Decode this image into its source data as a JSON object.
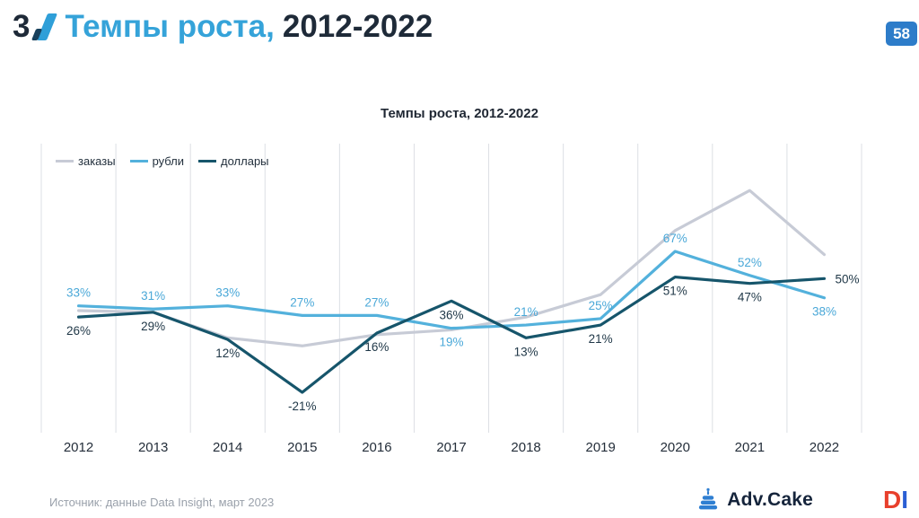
{
  "slide": {
    "number": "3",
    "title_highlight": "Темпы роста,",
    "title_rest": "2012-2022",
    "page_badge": "58"
  },
  "chart_data": {
    "type": "line",
    "title": "Темпы роста, 2012-2022",
    "categories": [
      "2012",
      "2013",
      "2014",
      "2015",
      "2016",
      "2017",
      "2018",
      "2019",
      "2020",
      "2021",
      "2022"
    ],
    "series": [
      {
        "id": "orders",
        "name": "заказы",
        "color": "#c7cbd6",
        "label_color": "#c7cbd6",
        "show_labels": false,
        "values": [
          30,
          29,
          13,
          8,
          15,
          18,
          26,
          40,
          80,
          105,
          65
        ],
        "label_positions": []
      },
      {
        "id": "rubles",
        "name": "рубли",
        "color": "#53b1dc",
        "label_color": "#4aa8d8",
        "show_labels": true,
        "values": [
          33,
          31,
          33,
          27,
          27,
          19,
          21,
          25,
          67,
          52,
          38
        ],
        "label_positions": [
          "above",
          "above",
          "above",
          "above",
          "above",
          "below",
          "above",
          "above",
          "above",
          "above",
          "below"
        ]
      },
      {
        "id": "dollars",
        "name": "доллары",
        "color": "#16556b",
        "label_color": "#1f3747",
        "show_labels": true,
        "values": [
          26,
          29,
          12,
          -21,
          16,
          36,
          13,
          21,
          51,
          47,
          50
        ],
        "label_positions": [
          "below",
          "below",
          "below",
          "below",
          "below",
          "below",
          "below",
          "below",
          "below",
          "below",
          "right"
        ]
      }
    ],
    "label_suffix": "%",
    "ylim": [
      -35,
      118
    ],
    "grid": "vertical",
    "grid_color": "#dcdfe4",
    "axis_label_color": "#242e3a",
    "legend_position": "top-left"
  },
  "footer": {
    "source": "Источник: данные Data Insight, март 2023",
    "advcake_label": "Adv.Cake",
    "di_d": "D",
    "di_i": "I"
  }
}
